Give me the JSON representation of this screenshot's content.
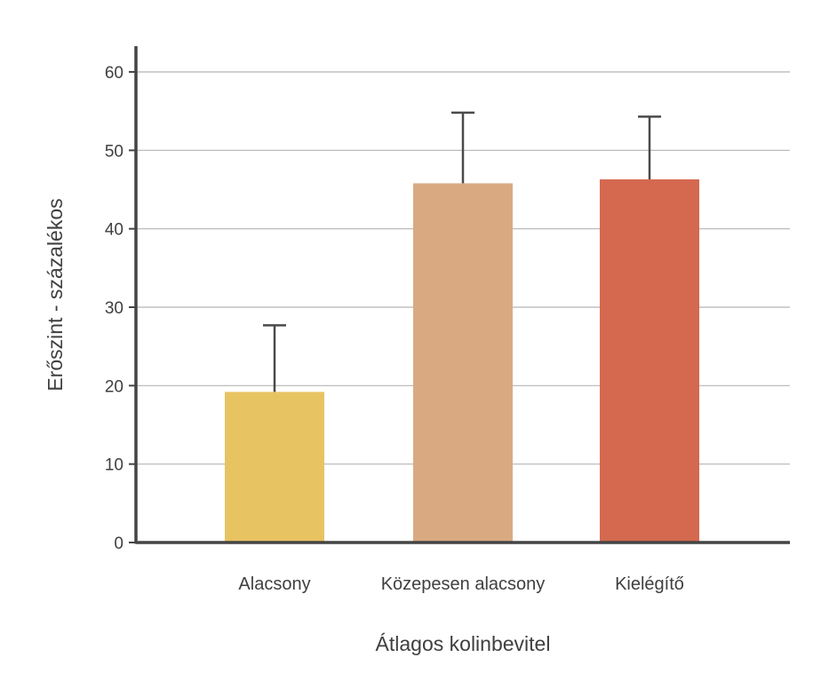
{
  "chart_data": {
    "type": "bar",
    "categories": [
      "Alacsony",
      "Közepesen alacsony",
      "Kielégítő"
    ],
    "values": [
      19.2,
      45.8,
      46.3
    ],
    "error_upper": [
      27.7,
      54.8,
      54.3
    ],
    "colors": [
      "#e8c362",
      "#d9aa82",
      "#d4694f"
    ],
    "xlabel": "Átlagos kolinbevitel",
    "ylabel": "Erőszint - százalékos",
    "ylim": [
      0,
      60
    ],
    "yticks": [
      0,
      10,
      20,
      30,
      40,
      50,
      60
    ],
    "grid": true,
    "axis_color": "#444444",
    "grid_color": "#b5b5b5"
  }
}
